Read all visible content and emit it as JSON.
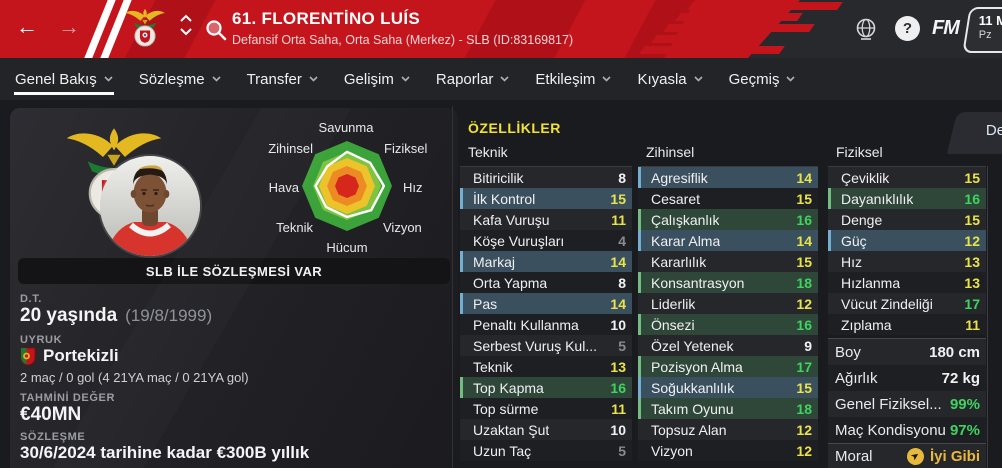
{
  "topbar": {
    "title": "61. FLORENTİNO LUÍS",
    "subtitle": "Defansif Orta Saha, Orta Saha (Merkez) - SLB (ID:83169817)",
    "fm_logo": "FM",
    "help_glyph": "?",
    "date_day": "11 M",
    "date_weekday": "Pz"
  },
  "nav": {
    "items": [
      {
        "label": "Genel Bakış",
        "active": true
      },
      {
        "label": "Sözleşme",
        "active": false
      },
      {
        "label": "Transfer",
        "active": false
      },
      {
        "label": "Gelişim",
        "active": false
      },
      {
        "label": "Raporlar",
        "active": false
      },
      {
        "label": "Etkileşim",
        "active": false
      },
      {
        "label": "Kıyasla",
        "active": false
      },
      {
        "label": "Geçmiş",
        "active": false
      }
    ]
  },
  "profile": {
    "contract_banner": "SLB İLE SÖZLEŞMESİ VAR",
    "dob_label": "D.T.",
    "age": "20 yaşında",
    "dob": "(19/8/1999)",
    "nationality_label": "UYRUK",
    "nationality": "Portekizli",
    "intl_record": "2 maç / 0 gol (4 21YA maç / 0 21YA gol)",
    "value_label": "TAHMİNİ DEĞER",
    "value": "€40MN",
    "contract_label": "SÖZLEŞME",
    "contract": "30/6/2024 tarihine kadar €300B yıllık"
  },
  "radar": {
    "axes": [
      {
        "label": "Savunma",
        "level": 0.76
      },
      {
        "label": "Fiziksel",
        "level": 0.73
      },
      {
        "label": "Hız",
        "level": 0.82
      },
      {
        "label": "Vizyon",
        "level": 0.76
      },
      {
        "label": "Hücum",
        "level": 0.69
      },
      {
        "label": "Teknik",
        "level": 0.66
      },
      {
        "label": "Hava",
        "level": 0.7
      },
      {
        "label": "Zihinsel",
        "level": 0.62
      }
    ]
  },
  "attributes": {
    "title": "ÖZELLİKLER",
    "detail_tab": "De",
    "columns": [
      {
        "header": "Teknik",
        "rows": [
          {
            "name": "Bitiricilik",
            "value": 8,
            "highlight": null
          },
          {
            "name": "İlk Kontrol",
            "value": 15,
            "highlight": "blue"
          },
          {
            "name": "Kafa Vuruşu",
            "value": 11,
            "highlight": null
          },
          {
            "name": "Köşe Vuruşları",
            "value": 4,
            "highlight": null
          },
          {
            "name": "Markaj",
            "value": 14,
            "highlight": "blue"
          },
          {
            "name": "Orta Yapma",
            "value": 8,
            "highlight": null
          },
          {
            "name": "Pas",
            "value": 14,
            "highlight": "blue"
          },
          {
            "name": "Penaltı Kullanma",
            "value": 10,
            "highlight": null
          },
          {
            "name": "Serbest Vuruş Kul...",
            "value": 5,
            "highlight": null
          },
          {
            "name": "Teknik",
            "value": 13,
            "highlight": null
          },
          {
            "name": "Top Kapma",
            "value": 16,
            "highlight": "green"
          },
          {
            "name": "Top sürme",
            "value": 11,
            "highlight": null
          },
          {
            "name": "Uzaktan Şut",
            "value": 10,
            "highlight": null
          },
          {
            "name": "Uzun Taç",
            "value": 5,
            "highlight": null
          }
        ]
      },
      {
        "header": "Zihinsel",
        "rows": [
          {
            "name": "Agresiflik",
            "value": 14,
            "highlight": "blue"
          },
          {
            "name": "Cesaret",
            "value": 15,
            "highlight": null
          },
          {
            "name": "Çalışkanlık",
            "value": 16,
            "highlight": "green"
          },
          {
            "name": "Karar Alma",
            "value": 14,
            "highlight": "blue"
          },
          {
            "name": "Kararlılık",
            "value": 15,
            "highlight": null
          },
          {
            "name": "Konsantrasyon",
            "value": 18,
            "highlight": "green"
          },
          {
            "name": "Liderlik",
            "value": 12,
            "highlight": null
          },
          {
            "name": "Önsezi",
            "value": 16,
            "highlight": "green"
          },
          {
            "name": "Özel Yetenek",
            "value": 9,
            "highlight": null
          },
          {
            "name": "Pozisyon Alma",
            "value": 17,
            "highlight": "green"
          },
          {
            "name": "Soğukkanlılık",
            "value": 15,
            "highlight": "blue"
          },
          {
            "name": "Takım Oyunu",
            "value": 18,
            "highlight": "green"
          },
          {
            "name": "Topsuz Alan",
            "value": 12,
            "highlight": null
          },
          {
            "name": "Vizyon",
            "value": 12,
            "highlight": null
          }
        ]
      },
      {
        "header": "Fiziksel",
        "rows": [
          {
            "name": "Çeviklik",
            "value": 15,
            "highlight": null
          },
          {
            "name": "Dayanıklılık",
            "value": 16,
            "highlight": "green"
          },
          {
            "name": "Denge",
            "value": 15,
            "highlight": null
          },
          {
            "name": "Güç",
            "value": 12,
            "highlight": "blue"
          },
          {
            "name": "Hız",
            "value": 13,
            "highlight": null
          },
          {
            "name": "Hızlanma",
            "value": 13,
            "highlight": null
          },
          {
            "name": "Vücut Zindeliği",
            "value": 17,
            "highlight": null
          },
          {
            "name": "Zıplama",
            "value": 11,
            "highlight": null
          }
        ]
      }
    ]
  },
  "physique": {
    "rows": [
      {
        "label": "Boy",
        "value": "180 cm",
        "tone": "white",
        "icon": null
      },
      {
        "label": "Ağırlık",
        "value": "72 kg",
        "tone": "white",
        "icon": null
      },
      {
        "label": "Genel Fiziksel...",
        "value": "99%",
        "tone": "green",
        "icon": null
      },
      {
        "label": "Maç Kondisyonu",
        "value": "97%",
        "tone": "green",
        "icon": null
      },
      {
        "label": "Moral",
        "value": "İyi Gibi",
        "tone": "gold",
        "icon": "morale-icon"
      }
    ]
  },
  "colors": {
    "topbar_red": "#c4141c",
    "accent_yellow": "#f2e235",
    "value_green": "#3fd35f",
    "value_yellow": "#e9e44a",
    "morale_gold": "#e8b93a",
    "highlight_blue": "#3b505f",
    "highlight_green": "#2f4739"
  }
}
